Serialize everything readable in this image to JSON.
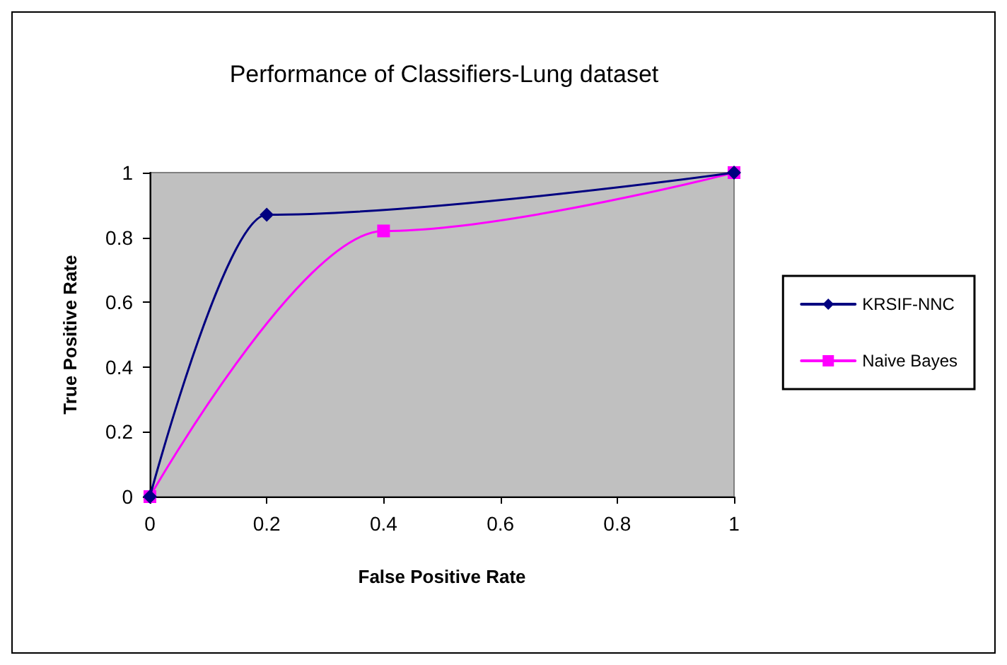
{
  "chart_data": {
    "type": "line",
    "title": "Performance of Classifiers-Lung dataset",
    "xlabel": "False Positive Rate",
    "ylabel": "True Positive Rate",
    "series": [
      {
        "name": "KRSIF-NNC",
        "color": "#000080",
        "marker": "diamond",
        "x": [
          0,
          0.2,
          1
        ],
        "values": [
          0,
          0.87,
          1
        ]
      },
      {
        "name": "Naive Bayes",
        "color": "#ff00ff",
        "marker": "square",
        "x": [
          0,
          0.4,
          1
        ],
        "values": [
          0,
          0.82,
          1
        ]
      }
    ],
    "xlim": [
      0,
      1
    ],
    "xticks": [
      0,
      0.2,
      0.4,
      0.6,
      0.8,
      1
    ],
    "ylim": [
      0,
      1
    ],
    "yticks": [
      0,
      0.2,
      0.4,
      0.6,
      0.8,
      1
    ],
    "grid": false,
    "legend": "right",
    "line_style": "solid"
  }
}
